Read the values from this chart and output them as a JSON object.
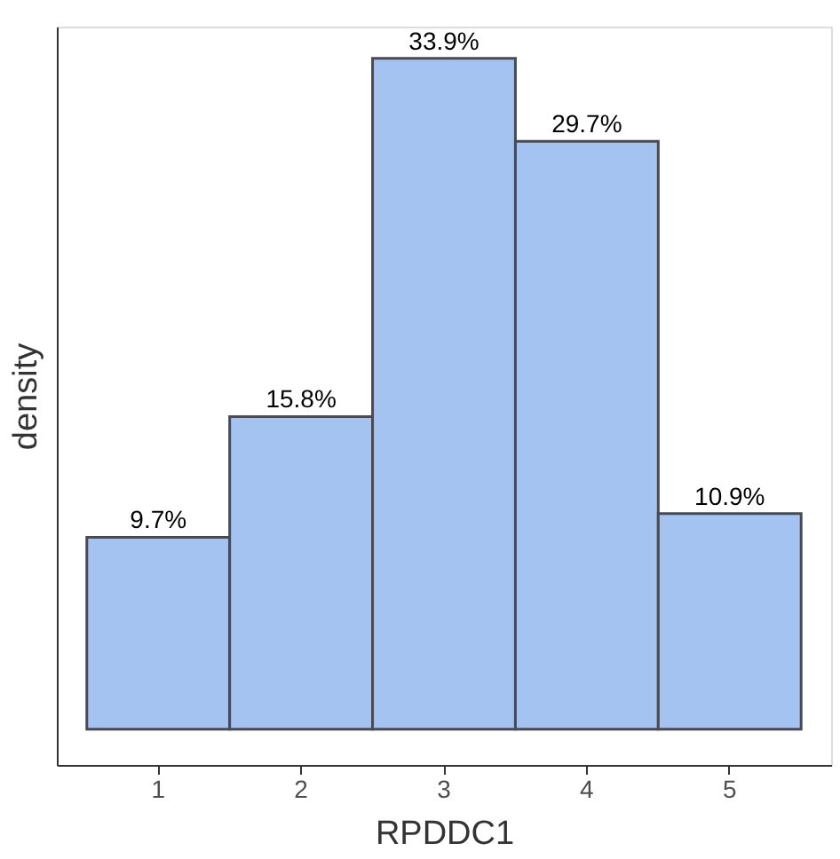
{
  "chart_data": {
    "type": "bar",
    "xlabel": "RPDDC1",
    "ylabel": "density",
    "categories": [
      "1",
      "2",
      "3",
      "4",
      "5"
    ],
    "values": [
      9.7,
      15.8,
      33.9,
      29.7,
      10.9
    ],
    "value_labels": [
      "9.7%",
      "15.8%",
      "33.9%",
      "29.7%",
      "10.9%"
    ],
    "color": "#a4c3f0",
    "ylim": [
      -1.8,
      35.5
    ],
    "tick_labels": "x",
    "grid": false
  }
}
